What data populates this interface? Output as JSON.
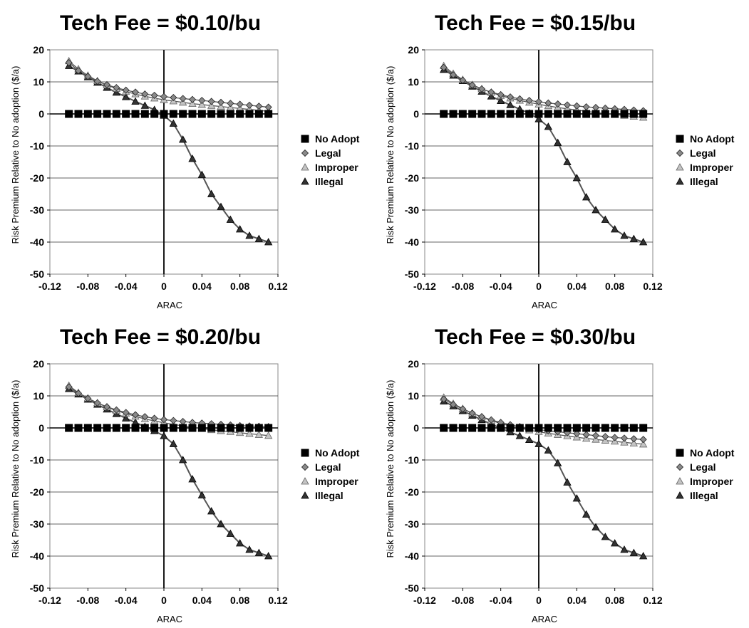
{
  "chart_data": [
    {
      "type": "line",
      "title": "Tech Fee = $0.10/bu",
      "xlabel": "ARAC",
      "ylabel": "Risk Premium Relative to No adoption ($/a)",
      "xlim": [
        -0.12,
        0.12
      ],
      "ylim": [
        -50,
        20
      ],
      "xticks": [
        -0.12,
        -0.08,
        -0.04,
        0,
        0.04,
        0.08,
        0.12
      ],
      "xtick_labels": [
        "-0.12",
        "-0.08",
        "-0.04",
        "0",
        "0.04",
        "0.08",
        "0.12"
      ],
      "yticks": [
        -50,
        -40,
        -30,
        -20,
        -10,
        0,
        10,
        20
      ],
      "ytick_labels": [
        "-50",
        "-40",
        "-30",
        "-20",
        "-10",
        "0",
        "10",
        "20"
      ],
      "grid": "horizontal",
      "legend": "right",
      "x": [
        -0.1,
        -0.09,
        -0.08,
        -0.07,
        -0.06,
        -0.05,
        -0.04,
        -0.03,
        -0.02,
        -0.01,
        0,
        0.01,
        0.02,
        0.03,
        0.04,
        0.05,
        0.06,
        0.07,
        0.08,
        0.09,
        0.1,
        0.11
      ],
      "series": [
        {
          "name": "No Adopt",
          "marker": "square",
          "values": [
            0,
            0,
            0,
            0,
            0,
            0,
            0,
            0,
            0,
            0,
            0,
            0,
            0,
            0,
            0,
            0,
            0,
            0,
            0,
            0,
            0,
            0
          ]
        },
        {
          "name": "Legal",
          "marker": "diamond",
          "values": [
            16,
            13.5,
            11.7,
            10.2,
            9.1,
            8.2,
            7.4,
            6.8,
            6.2,
            5.8,
            5.4,
            5.1,
            4.8,
            4.5,
            4.2,
            3.9,
            3.6,
            3.3,
            3.0,
            2.7,
            2.4,
            2.1
          ]
        },
        {
          "name": "Improper",
          "marker": "triangle",
          "values": [
            16.5,
            14,
            12,
            10.3,
            9.0,
            7.9,
            7.0,
            6.2,
            5.5,
            4.9,
            4.4,
            4.0,
            3.6,
            3.2,
            2.9,
            2.6,
            2.3,
            2.0,
            1.7,
            1.4,
            1.1,
            0.8
          ]
        },
        {
          "name": "Illegal",
          "marker": "triangle",
          "values": [
            15,
            13.3,
            11.5,
            9.8,
            8.2,
            6.7,
            5.3,
            3.9,
            2.6,
            1.3,
            -0.5,
            -3,
            -8,
            -14,
            -19,
            -25,
            -29,
            -33,
            -36,
            -38,
            -39,
            -40
          ]
        }
      ]
    },
    {
      "type": "line",
      "title": "Tech Fee = $0.15/bu",
      "xlabel": "ARAC",
      "ylabel": "Risk Premium Relative to No adoption ($/a)",
      "xlim": [
        -0.12,
        0.12
      ],
      "ylim": [
        -50,
        20
      ],
      "xticks": [
        -0.12,
        -0.08,
        -0.04,
        0,
        0.04,
        0.08,
        0.12
      ],
      "xtick_labels": [
        "-0.12",
        "-0.08",
        "-0.04",
        "0",
        "0.04",
        "0.08",
        "0.12"
      ],
      "yticks": [
        -50,
        -40,
        -30,
        -20,
        -10,
        0,
        10,
        20
      ],
      "ytick_labels": [
        "-50",
        "-40",
        "-30",
        "-20",
        "-10",
        "0",
        "10",
        "20"
      ],
      "grid": "horizontal",
      "legend": "right",
      "x": [
        -0.1,
        -0.09,
        -0.08,
        -0.07,
        -0.06,
        -0.05,
        -0.04,
        -0.03,
        -0.02,
        -0.01,
        0,
        0.01,
        0.02,
        0.03,
        0.04,
        0.05,
        0.06,
        0.07,
        0.08,
        0.09,
        0.1,
        0.11
      ],
      "series": [
        {
          "name": "No Adopt",
          "marker": "square",
          "values": [
            0,
            0,
            0,
            0,
            0,
            0,
            0,
            0,
            0,
            0,
            0,
            0,
            0,
            0,
            0,
            0,
            0,
            0,
            0,
            0,
            0,
            0
          ]
        },
        {
          "name": "Legal",
          "marker": "diamond",
          "values": [
            14.5,
            12.2,
            10.5,
            9.0,
            7.8,
            6.8,
            6.0,
            5.3,
            4.7,
            4.2,
            3.8,
            3.4,
            3.1,
            2.8,
            2.5,
            2.2,
            2.0,
            1.8,
            1.6,
            1.4,
            1.2,
            1.0
          ]
        },
        {
          "name": "Improper",
          "marker": "triangle",
          "values": [
            15,
            12.6,
            10.7,
            9.1,
            7.8,
            6.7,
            5.7,
            4.9,
            4.2,
            3.6,
            3.0,
            2.5,
            2.0,
            1.6,
            1.2,
            0.8,
            0.4,
            0.1,
            -0.2,
            -0.5,
            -0.8,
            -1.1
          ]
        },
        {
          "name": "Illegal",
          "marker": "triangle",
          "values": [
            13.8,
            12.0,
            10.3,
            8.6,
            7.0,
            5.5,
            4.1,
            2.8,
            1.5,
            0.2,
            -1.6,
            -4,
            -9,
            -15,
            -20,
            -26,
            -30,
            -33,
            -36,
            -38,
            -39,
            -40
          ]
        }
      ]
    },
    {
      "type": "line",
      "title": "Tech Fee = $0.20/bu",
      "xlabel": "ARAC",
      "ylabel": "Risk Premium Relative to No adoption ($/a)",
      "xlim": [
        -0.12,
        0.12
      ],
      "ylim": [
        -50,
        20
      ],
      "xticks": [
        -0.12,
        -0.08,
        -0.04,
        0,
        0.04,
        0.08,
        0.12
      ],
      "xtick_labels": [
        "-0.12",
        "-0.08",
        "-0.04",
        "0",
        "0.04",
        "0.08",
        "0.12"
      ],
      "yticks": [
        -50,
        -40,
        -30,
        -20,
        -10,
        0,
        10,
        20
      ],
      "ytick_labels": [
        "-50",
        "-40",
        "-30",
        "-20",
        "-10",
        "0",
        "10",
        "20"
      ],
      "grid": "horizontal",
      "legend": "right",
      "x": [
        -0.1,
        -0.09,
        -0.08,
        -0.07,
        -0.06,
        -0.05,
        -0.04,
        -0.03,
        -0.02,
        -0.01,
        0,
        0.01,
        0.02,
        0.03,
        0.04,
        0.05,
        0.06,
        0.07,
        0.08,
        0.09,
        0.1,
        0.11
      ],
      "series": [
        {
          "name": "No Adopt",
          "marker": "square",
          "values": [
            0,
            0,
            0,
            0,
            0,
            0,
            0,
            0,
            0,
            0,
            0,
            0,
            0,
            0,
            0,
            0,
            0,
            0,
            0,
            0,
            0,
            0
          ]
        },
        {
          "name": "Legal",
          "marker": "diamond",
          "values": [
            12.8,
            10.8,
            9.2,
            7.8,
            6.6,
            5.6,
            4.8,
            4.1,
            3.5,
            3.0,
            2.6,
            2.3,
            2.0,
            1.7,
            1.5,
            1.3,
            1.1,
            0.9,
            0.7,
            0.6,
            0.5,
            0.4
          ]
        },
        {
          "name": "Improper",
          "marker": "triangle",
          "values": [
            13.2,
            11.0,
            9.3,
            7.8,
            6.5,
            5.4,
            4.5,
            3.6,
            2.8,
            2.2,
            1.6,
            1.1,
            0.6,
            0.2,
            -0.2,
            -0.6,
            -0.9,
            -1.2,
            -1.5,
            -1.8,
            -2.1,
            -2.4
          ]
        },
        {
          "name": "Illegal",
          "marker": "triangle",
          "values": [
            12.2,
            10.5,
            8.9,
            7.3,
            5.8,
            4.4,
            3.0,
            1.7,
            0.4,
            -0.9,
            -2.5,
            -5,
            -10,
            -16,
            -21,
            -26,
            -30,
            -33,
            -36,
            -38,
            -39,
            -40
          ]
        }
      ]
    },
    {
      "type": "line",
      "title": "Tech Fee = $0.30/bu",
      "xlabel": "ARAC",
      "ylabel": "Risk Premium Relative to No adoption ($/a)",
      "xlim": [
        -0.12,
        0.12
      ],
      "ylim": [
        -50,
        20
      ],
      "xticks": [
        -0.12,
        -0.08,
        -0.04,
        0,
        0.04,
        0.08,
        0.12
      ],
      "xtick_labels": [
        "-0.12",
        "-0.08",
        "-0.04",
        "0",
        "0.04",
        "0.08",
        "0.12"
      ],
      "yticks": [
        -50,
        -40,
        -30,
        -20,
        -10,
        0,
        10,
        20
      ],
      "ytick_labels": [
        "-50",
        "-40",
        "-30",
        "-20",
        "-10",
        "0",
        "10",
        "20"
      ],
      "grid": "horizontal",
      "legend": "right",
      "x": [
        -0.1,
        -0.09,
        -0.08,
        -0.07,
        -0.06,
        -0.05,
        -0.04,
        -0.03,
        -0.02,
        -0.01,
        0,
        0.01,
        0.02,
        0.03,
        0.04,
        0.05,
        0.06,
        0.07,
        0.08,
        0.09,
        0.1,
        0.11
      ],
      "series": [
        {
          "name": "No Adopt",
          "marker": "square",
          "values": [
            0,
            0,
            0,
            0,
            0,
            0,
            0,
            0,
            0,
            0,
            0,
            0,
            0,
            0,
            0,
            0,
            0,
            0,
            0,
            0,
            0,
            0
          ]
        },
        {
          "name": "Legal",
          "marker": "diamond",
          "values": [
            9.0,
            7.3,
            5.9,
            4.6,
            3.5,
            2.5,
            1.7,
            1.0,
            0.4,
            -0.1,
            -0.5,
            -0.9,
            -1.2,
            -1.5,
            -1.8,
            -2.1,
            -2.4,
            -2.7,
            -3.0,
            -3.2,
            -3.4,
            -3.6
          ]
        },
        {
          "name": "Improper",
          "marker": "triangle",
          "values": [
            9.5,
            7.6,
            6.0,
            4.6,
            3.4,
            2.3,
            1.4,
            0.6,
            -0.1,
            -0.7,
            -1.2,
            -1.7,
            -2.1,
            -2.5,
            -2.9,
            -3.3,
            -3.6,
            -3.9,
            -4.2,
            -4.5,
            -4.8,
            -5.1
          ]
        },
        {
          "name": "Illegal",
          "marker": "triangle",
          "values": [
            8.3,
            6.8,
            5.3,
            3.9,
            2.5,
            1.2,
            -0.1,
            -1.3,
            -2.5,
            -3.7,
            -5,
            -7,
            -11,
            -17,
            -22,
            -27,
            -31,
            -34,
            -36,
            -38,
            -39,
            -40
          ]
        }
      ]
    }
  ]
}
